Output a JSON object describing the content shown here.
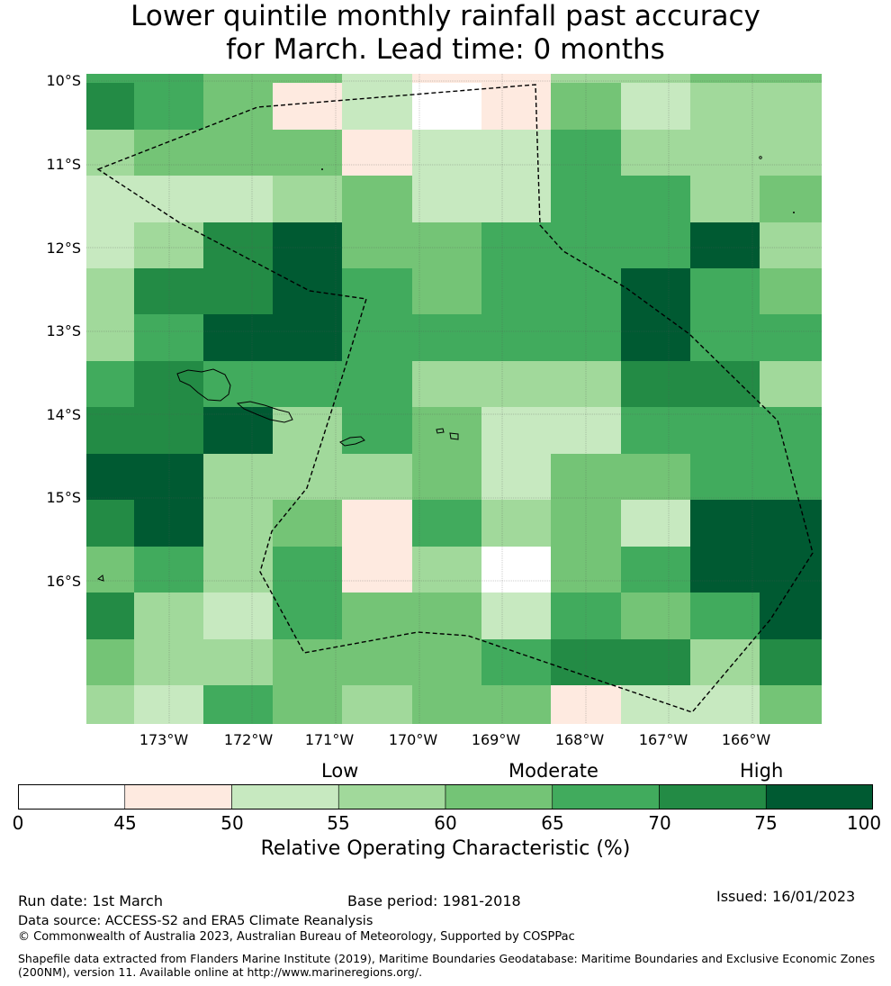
{
  "title": {
    "line1": "Lower quintile monthly rainfall past accuracy",
    "line2": "for March. Lead time: 0 months"
  },
  "map": {
    "lat_labels": [
      "10°S",
      "11°S",
      "12°S",
      "13°S",
      "14°S",
      "15°S",
      "16°S"
    ],
    "lon_labels": [
      "173°W",
      "172°W",
      "171°W",
      "170°W",
      "169°W",
      "168°W",
      "167°W",
      "166°W"
    ],
    "grid_cells": [
      [
        5,
        5,
        4,
        4,
        2,
        1,
        1,
        3,
        3,
        4,
        4
      ],
      [
        6,
        5,
        4,
        1,
        2,
        0,
        1,
        4,
        2,
        3,
        3
      ],
      [
        3,
        4,
        4,
        4,
        1,
        2,
        2,
        5,
        3,
        3,
        3
      ],
      [
        2,
        2,
        2,
        3,
        4,
        2,
        2,
        5,
        5,
        3,
        4
      ],
      [
        2,
        3,
        6,
        7,
        4,
        4,
        5,
        5,
        5,
        7,
        3
      ],
      [
        3,
        6,
        6,
        7,
        5,
        4,
        5,
        5,
        7,
        5,
        4
      ],
      [
        3,
        5,
        7,
        7,
        5,
        5,
        5,
        5,
        7,
        5,
        5
      ],
      [
        5,
        6,
        5,
        5,
        5,
        3,
        3,
        3,
        6,
        6,
        3
      ],
      [
        6,
        6,
        7,
        3,
        5,
        4,
        2,
        2,
        5,
        5,
        5
      ],
      [
        7,
        7,
        3,
        3,
        3,
        4,
        2,
        4,
        4,
        5,
        5
      ],
      [
        6,
        7,
        3,
        4,
        1,
        5,
        3,
        4,
        2,
        7,
        7
      ],
      [
        4,
        5,
        3,
        5,
        1,
        3,
        0,
        4,
        5,
        7,
        7
      ],
      [
        6,
        3,
        2,
        5,
        4,
        4,
        2,
        5,
        4,
        5,
        7
      ],
      [
        4,
        3,
        3,
        4,
        4,
        4,
        5,
        6,
        6,
        3,
        6
      ],
      [
        3,
        2,
        5,
        4,
        3,
        4,
        4,
        1,
        2,
        2,
        4
      ]
    ],
    "palette": [
      "#ffffff",
      "#feeae0",
      "#c7e9c0",
      "#a1d99b",
      "#74c476",
      "#41ab5d",
      "#238b45",
      "#005a32"
    ]
  },
  "legend": {
    "categories": [
      "Low",
      "Moderate",
      "High"
    ],
    "ticks": [
      "0",
      "45",
      "50",
      "55",
      "60",
      "65",
      "70",
      "75",
      "100"
    ],
    "title": "Relative Operating Characteristic (%)"
  },
  "footer": {
    "run_date": "Run date: 1st March",
    "base_period": "Base period: 1981-2018",
    "issued": "Issued: 16/01/2023",
    "data_source": "Data source: ACCESS-S2 and ERA5 Climate Reanalysis",
    "copyright": "© Commonwealth of Australia 2023, Australian Bureau of Meteorology, Supported by COSPPac",
    "shapefile_line1": "Shapefile data extracted from Flanders Marine Institute (2019), Maritime Boundaries Geodatabase: Maritime Boundaries and Exclusive Economic Zones",
    "shapefile_line2": "(200NM), version 11. Available online at http://www.marineregions.org/."
  }
}
